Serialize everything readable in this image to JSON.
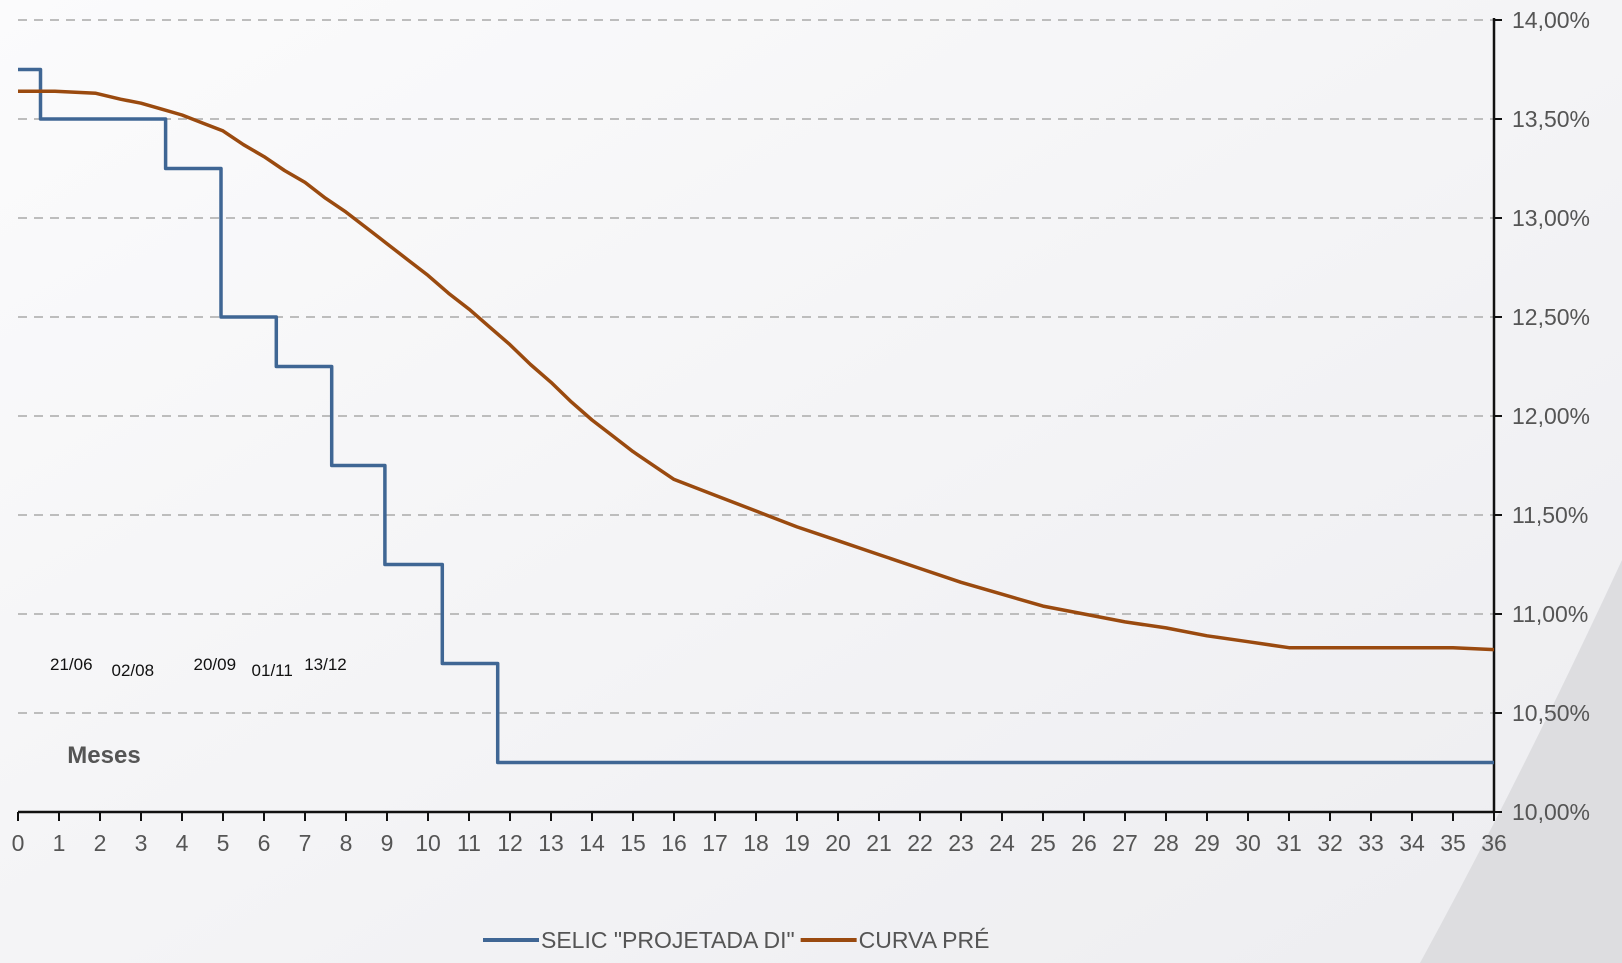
{
  "chart_data": {
    "type": "line",
    "xlabel": "Meses",
    "ylabel": "",
    "xlim": [
      0,
      36
    ],
    "ylim": [
      10.0,
      14.0
    ],
    "x_ticks": [
      0,
      1,
      2,
      3,
      4,
      5,
      6,
      7,
      8,
      9,
      10,
      11,
      12,
      13,
      14,
      15,
      16,
      17,
      18,
      19,
      20,
      21,
      22,
      23,
      24,
      25,
      26,
      27,
      28,
      29,
      30,
      31,
      32,
      33,
      34,
      35,
      36
    ],
    "y_ticks": [
      {
        "value": 10.0,
        "label": "10,00%"
      },
      {
        "value": 10.5,
        "label": "10,50%"
      },
      {
        "value": 11.0,
        "label": "11,00%"
      },
      {
        "value": 11.5,
        "label": "11,50%"
      },
      {
        "value": 12.0,
        "label": "12,00%"
      },
      {
        "value": 12.5,
        "label": "12,50%"
      },
      {
        "value": 13.0,
        "label": "13,00%"
      },
      {
        "value": 13.5,
        "label": "13,50%"
      },
      {
        "value": 14.0,
        "label": "14,00%"
      }
    ],
    "y_axis_side": "right",
    "grid": "horizontal dashed",
    "legend_position": "bottom",
    "date_annotations": [
      {
        "label": "21/06",
        "x": 1.3
      },
      {
        "label": "02/08",
        "x": 2.8
      },
      {
        "label": "20/09",
        "x": 4.8
      },
      {
        "label": "01/11",
        "x": 6.2
      },
      {
        "label": "13/12",
        "x": 7.5
      }
    ],
    "series": [
      {
        "name": "SELIC \"PROJETADA DI\"",
        "color": "#3f6694",
        "step": true,
        "points": [
          [
            0,
            13.75
          ],
          [
            0.55,
            13.75
          ],
          [
            0.55,
            13.5
          ],
          [
            3.6,
            13.5
          ],
          [
            3.6,
            13.25
          ],
          [
            4.95,
            13.25
          ],
          [
            4.95,
            12.5
          ],
          [
            6.3,
            12.5
          ],
          [
            6.3,
            12.25
          ],
          [
            7.65,
            12.25
          ],
          [
            7.65,
            11.75
          ],
          [
            8.95,
            11.75
          ],
          [
            8.95,
            11.25
          ],
          [
            10.35,
            11.25
          ],
          [
            10.35,
            10.75
          ],
          [
            11.7,
            10.75
          ],
          [
            11.7,
            10.25
          ],
          [
            36,
            10.25
          ]
        ]
      },
      {
        "name": "CURVA PRÉ",
        "color": "#9a4a0f",
        "step": false,
        "points": [
          [
            0,
            13.64
          ],
          [
            0.9,
            13.64
          ],
          [
            1.9,
            13.63
          ],
          [
            2.5,
            13.6
          ],
          [
            3.0,
            13.58
          ],
          [
            3.5,
            13.55
          ],
          [
            4.0,
            13.52
          ],
          [
            4.5,
            13.48
          ],
          [
            5.0,
            13.44
          ],
          [
            5.5,
            13.37
          ],
          [
            6.0,
            13.31
          ],
          [
            6.5,
            13.24
          ],
          [
            7.0,
            13.18
          ],
          [
            7.5,
            13.1
          ],
          [
            8.0,
            13.03
          ],
          [
            8.5,
            12.95
          ],
          [
            9.0,
            12.87
          ],
          [
            9.5,
            12.79
          ],
          [
            10.0,
            12.71
          ],
          [
            10.5,
            12.62
          ],
          [
            11.0,
            12.54
          ],
          [
            11.5,
            12.45
          ],
          [
            12.0,
            12.36
          ],
          [
            12.5,
            12.26
          ],
          [
            13.0,
            12.17
          ],
          [
            13.5,
            12.07
          ],
          [
            14.0,
            11.98
          ],
          [
            14.5,
            11.9
          ],
          [
            15.0,
            11.82
          ],
          [
            16.0,
            11.68
          ],
          [
            17.0,
            11.6
          ],
          [
            18.0,
            11.52
          ],
          [
            19.0,
            11.44
          ],
          [
            20.0,
            11.37
          ],
          [
            21.0,
            11.3
          ],
          [
            22.0,
            11.23
          ],
          [
            23.0,
            11.16
          ],
          [
            24.0,
            11.1
          ],
          [
            25.0,
            11.04
          ],
          [
            26.0,
            11.0
          ],
          [
            27.0,
            10.96
          ],
          [
            28.0,
            10.93
          ],
          [
            29.0,
            10.89
          ],
          [
            30.0,
            10.86
          ],
          [
            31.0,
            10.83
          ],
          [
            32.0,
            10.83
          ],
          [
            33.0,
            10.83
          ],
          [
            34.0,
            10.83
          ],
          [
            35.0,
            10.83
          ],
          [
            36.0,
            10.82
          ]
        ]
      }
    ]
  }
}
